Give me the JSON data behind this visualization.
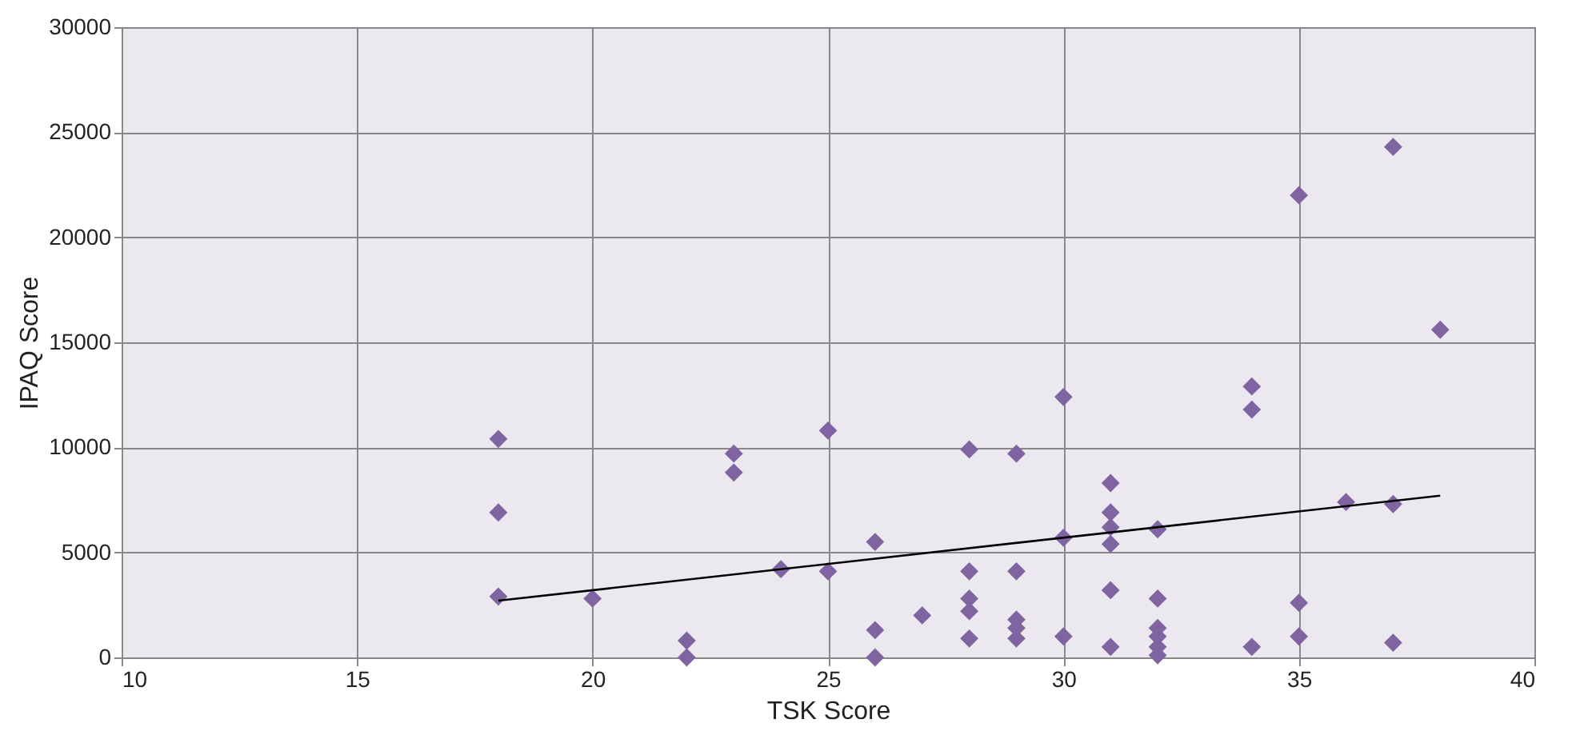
{
  "chart_data": {
    "type": "scatter",
    "xlabel": "TSK Score",
    "ylabel": "IPAQ Score",
    "xlim": [
      10,
      40
    ],
    "xticks": [
      10,
      15,
      20,
      25,
      30,
      35,
      40
    ],
    "ylim": [
      0,
      30000
    ],
    "yticks": [
      0,
      5000,
      10000,
      15000,
      20000,
      25000,
      30000
    ],
    "grid": true,
    "marker": "diamond",
    "series": [
      {
        "color": "#8064a2",
        "x": [
          18,
          18,
          18,
          20,
          22,
          22,
          23,
          23,
          24,
          25,
          25,
          26,
          26,
          26,
          27,
          28,
          28,
          28,
          28,
          28,
          29,
          29,
          29,
          29,
          29,
          30,
          30,
          30,
          31,
          31,
          31,
          31,
          31,
          31,
          32,
          32,
          32,
          32,
          32,
          32,
          34,
          34,
          34,
          35,
          35,
          35,
          36,
          37,
          37,
          37,
          38
        ],
        "values": [
          10400,
          6900,
          2900,
          2800,
          800,
          0,
          9700,
          8800,
          4200,
          10800,
          4100,
          5500,
          1300,
          0,
          2000,
          9900,
          4100,
          2800,
          2200,
          900,
          9700,
          4100,
          1800,
          1400,
          900,
          12400,
          5700,
          1000,
          8300,
          6900,
          6200,
          5400,
          3200,
          500,
          6100,
          2800,
          1400,
          1000,
          500,
          100,
          12900,
          11800,
          500,
          22000,
          2600,
          1000,
          7400,
          24300,
          7300,
          700,
          15600
        ]
      },
      {
        "type": "line",
        "color": "#000000",
        "marker": "none",
        "x": [
          18,
          38
        ],
        "values": [
          2700,
          7700
        ]
      }
    ]
  }
}
